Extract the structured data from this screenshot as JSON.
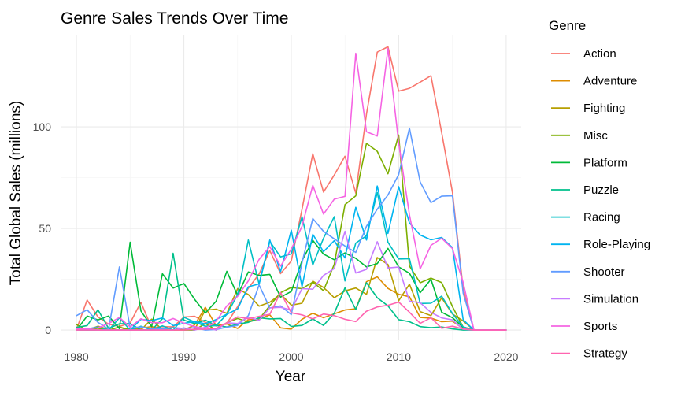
{
  "chart_data": {
    "type": "line",
    "title": "Genre Sales Trends Over Time",
    "xlabel": "Year",
    "ylabel": "Total Global Sales (millions)",
    "xlim": [
      1978.6,
      2021.4
    ],
    "ylim": [
      -5,
      145
    ],
    "x_ticks": [
      1980,
      1990,
      2000,
      2010,
      2020
    ],
    "y_ticks": [
      0,
      50,
      100
    ],
    "grid": true,
    "legend": {
      "title": "Genre",
      "position": "right"
    },
    "x": [
      1980,
      1981,
      1982,
      1983,
      1984,
      1985,
      1986,
      1987,
      1988,
      1989,
      1990,
      1991,
      1992,
      1993,
      1994,
      1995,
      1996,
      1997,
      1998,
      1999,
      2000,
      2001,
      2002,
      2003,
      2004,
      2005,
      2006,
      2007,
      2008,
      2009,
      2010,
      2011,
      2012,
      2013,
      2014,
      2015,
      2016,
      2017,
      2018,
      2019,
      2020
    ],
    "series": [
      {
        "name": "Action",
        "color": "#F8766D",
        "values": [
          0.3,
          14.8,
          6.5,
          2.9,
          1.8,
          3.5,
          13.7,
          1.1,
          1.7,
          1.6,
          6.4,
          6.8,
          3.8,
          2.0,
          3.3,
          11.5,
          20.6,
          27.6,
          39.1,
          27.8,
          34.0,
          59.4,
          86.8,
          67.9,
          76.3,
          85.6,
          67.4,
          106.3,
          136.8,
          139.4,
          117.6,
          119.0,
          122.0,
          125.2,
          97.2,
          67.8,
          20.4,
          0.0,
          0.0,
          0.0,
          0.0
        ]
      },
      {
        "name": "Adventure",
        "color": "#DE8C00",
        "values": [
          0.0,
          0.0,
          1.9,
          0.4,
          0.0,
          0.0,
          0.8,
          1.8,
          0.0,
          0.0,
          0.0,
          2.5,
          11.2,
          2.2,
          3.0,
          0.8,
          5.1,
          5.3,
          7.5,
          1.1,
          0.5,
          5.3,
          8.3,
          6.1,
          8.0,
          9.9,
          10.5,
          23.8,
          26.2,
          20.5,
          17.6,
          16.4,
          6.2,
          5.9,
          4.1,
          4.4,
          0.7,
          0.0,
          0.0,
          0.0,
          0.0
        ]
      },
      {
        "name": "Fighting",
        "color": "#B79F00",
        "values": [
          0.8,
          0.0,
          0.0,
          0.0,
          0.0,
          1.0,
          0.0,
          5.4,
          0.0,
          0.0,
          0.0,
          0.4,
          9.8,
          10.3,
          8.2,
          20.4,
          17.5,
          11.8,
          13.7,
          17.7,
          12.3,
          13.2,
          24.1,
          21.0,
          15.9,
          19.3,
          20.7,
          17.6,
          35.7,
          32.3,
          14.4,
          22.6,
          9.1,
          7.1,
          15.9,
          7.9,
          4.5,
          0.0,
          0.0,
          0.0,
          0.0
        ]
      },
      {
        "name": "Misc",
        "color": "#7CAE00",
        "values": [
          2.7,
          0.0,
          0.9,
          0.0,
          1.5,
          0.0,
          0.0,
          0.0,
          0.0,
          1.3,
          0.0,
          0.0,
          3.2,
          0.0,
          3.7,
          5.7,
          4.0,
          5.4,
          12.0,
          18.4,
          21.0,
          20.4,
          23.6,
          19.4,
          32.4,
          61.7,
          66.1,
          91.9,
          88.0,
          76.9,
          96.0,
          31.5,
          23.3,
          25.6,
          23.4,
          11.6,
          1.5,
          0.0,
          0.0,
          0.0,
          0.0
        ]
      },
      {
        "name": "Platform",
        "color": "#00BA38",
        "values": [
          0.0,
          6.9,
          5.0,
          6.9,
          0.7,
          43.2,
          9.4,
          1.7,
          27.7,
          20.7,
          22.9,
          15.1,
          8.4,
          14.2,
          28.9,
          17.1,
          28.6,
          26.9,
          27.4,
          16.2,
          19.0,
          34.1,
          44.2,
          37.4,
          34.6,
          38.0,
          35.3,
          31.1,
          32.7,
          40.2,
          31.1,
          28.0,
          18.4,
          25.0,
          8.8,
          6.1,
          1.3,
          0.0,
          0.0,
          0.0,
          0.0
        ]
      },
      {
        "name": "Puzzle",
        "color": "#00C08B",
        "values": [
          1.3,
          2.2,
          10.0,
          0.8,
          3.1,
          3.2,
          0.0,
          0.0,
          5.6,
          37.8,
          4.9,
          3.2,
          4.9,
          2.3,
          1.5,
          2.9,
          3.8,
          6.1,
          5.5,
          5.7,
          1.8,
          2.3,
          5.5,
          2.3,
          8.3,
          20.8,
          10.1,
          23.3,
          15.9,
          11.9,
          5.1,
          4.1,
          1.7,
          1.2,
          1.5,
          0.6,
          0.0,
          0.0,
          0.0,
          0.0,
          0.0
        ]
      },
      {
        "name": "Racing",
        "color": "#00BFC4",
        "values": [
          0.0,
          0.5,
          1.6,
          0.0,
          6.0,
          0.0,
          1.9,
          0.0,
          2.1,
          0.0,
          6.3,
          4.0,
          1.9,
          2.2,
          7.7,
          17.4,
          44.3,
          22.6,
          43.6,
          36.0,
          37.5,
          55.8,
          32.0,
          45.2,
          55.8,
          24.2,
          42.8,
          46.4,
          67.7,
          43.2,
          35.0,
          35.1,
          13.1,
          13.2,
          16.7,
          8.1,
          1.6,
          0.0,
          0.0,
          0.0,
          0.0
        ]
      },
      {
        "name": "Role-Playing",
        "color": "#00B4F0",
        "values": [
          0.0,
          0.0,
          0.0,
          0.0,
          0.0,
          0.0,
          5.3,
          4.6,
          6.0,
          2.2,
          3.3,
          4.2,
          3.1,
          5.2,
          7.8,
          10.4,
          21.3,
          22.7,
          44.3,
          28.8,
          49.2,
          21.3,
          47.1,
          38.6,
          44.0,
          35.5,
          60.4,
          44.3,
          70.9,
          47.6,
          70.6,
          52.7,
          46.8,
          44.4,
          45.6,
          40.6,
          5.1,
          0.0,
          0.0,
          0.0,
          0.0
        ]
      },
      {
        "name": "Shooter",
        "color": "#619CFF",
        "values": [
          7.1,
          10.0,
          3.8,
          0.5,
          31.1,
          1.0,
          1.6,
          0.7,
          0.5,
          1.2,
          0.8,
          1.2,
          0.0,
          0.3,
          1.4,
          2.3,
          7.1,
          22.2,
          10.9,
          11.9,
          7.6,
          33.1,
          54.9,
          48.6,
          44.9,
          41.4,
          38.2,
          51.1,
          59.5,
          66.5,
          76.5,
          99.4,
          72.9,
          62.7,
          65.9,
          66.1,
          18.2,
          0.0,
          0.0,
          0.0,
          0.0
        ]
      },
      {
        "name": "Simulation",
        "color": "#C77CFF",
        "values": [
          0.0,
          0.4,
          0.0,
          0.0,
          0.0,
          0.0,
          0.0,
          0.0,
          0.0,
          0.0,
          1.1,
          0.0,
          1.4,
          0.0,
          3.6,
          3.2,
          6.3,
          4.8,
          10.9,
          11.2,
          9.9,
          20.4,
          20.1,
          26.9,
          30.3,
          48.6,
          28.1,
          29.9,
          43.5,
          30.6,
          31.0,
          14.2,
          13.5,
          8.7,
          6.0,
          5.0,
          0.4,
          0.0,
          0.0,
          0.0,
          0.0
        ]
      },
      {
        "name": "Sports",
        "color": "#F564E3",
        "values": [
          0.5,
          0.8,
          1.1,
          3.2,
          6.2,
          1.5,
          5.6,
          3.7,
          3.6,
          5.7,
          3.4,
          1.7,
          0.8,
          4.4,
          11.9,
          16.6,
          24.2,
          34.8,
          41.1,
          31.5,
          39.9,
          51.1,
          71.2,
          57.1,
          64.4,
          65.8,
          136.2,
          97.6,
          95.5,
          138.5,
          92.1,
          56.7,
          30.1,
          41.7,
          45.2,
          40.1,
          23.5,
          0.0,
          0.0,
          0.0,
          0.0
        ]
      },
      {
        "name": "Strategy",
        "color": "#FF64B0",
        "values": [
          0.0,
          0.0,
          0.0,
          0.0,
          0.0,
          0.0,
          0.0,
          0.0,
          0.0,
          0.0,
          0.0,
          0.4,
          0.4,
          0.8,
          3.6,
          6.5,
          5.6,
          6.8,
          7.8,
          18.5,
          8.5,
          7.5,
          5.5,
          7.9,
          7.1,
          5.3,
          4.2,
          9.3,
          11.4,
          12.2,
          13.8,
          8.8,
          3.3,
          6.1,
          0.9,
          1.9,
          0.6,
          0.0,
          0.0,
          0.0,
          0.0
        ]
      }
    ]
  }
}
